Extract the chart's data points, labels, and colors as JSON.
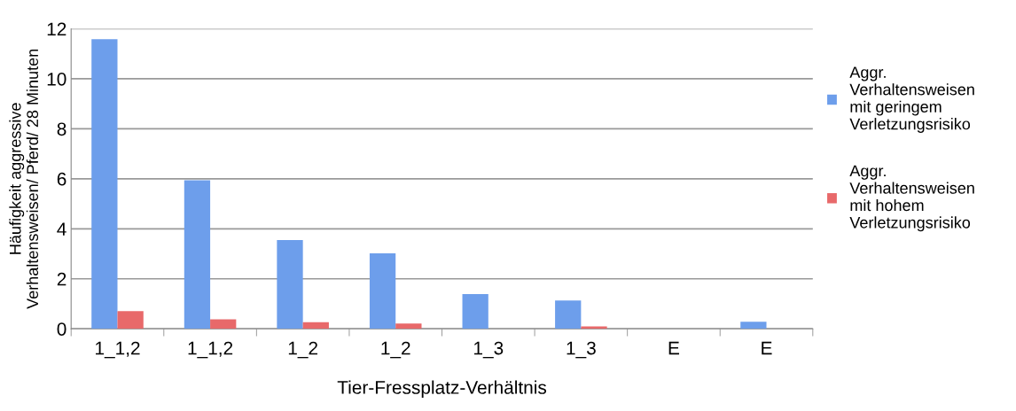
{
  "chart_data": {
    "type": "bar",
    "xlabel": "Tier-Fressplatz-Verhältnis",
    "ylabel": "Häufigkeit aggressive\nVerhaltensweisen/ Pferd/ 28 Minuten",
    "categories": [
      "1_1,2",
      "1_1,2",
      "1_2",
      "1_2",
      "1_3",
      "1_3",
      "E",
      "E"
    ],
    "series": [
      {
        "name": "Aggr.\nVerhaltensweisen\nmit geringem\nVerletzungsrisiko",
        "color": "#6d9eeb",
        "values": [
          11.58,
          5.94,
          3.55,
          3.02,
          1.39,
          1.13,
          0,
          0.28
        ]
      },
      {
        "name": "Aggr.\nVerhaltensweisen\nmit hohem\nVerletzungsrisiko",
        "color": "#e8696a",
        "values": [
          0.71,
          0.38,
          0.26,
          0.21,
          0,
          0.1,
          0,
          0
        ]
      }
    ],
    "ylim": [
      0,
      12
    ],
    "yticks": [
      0,
      2,
      4,
      6,
      8,
      10,
      12
    ],
    "grid": "y",
    "legend": "right"
  }
}
